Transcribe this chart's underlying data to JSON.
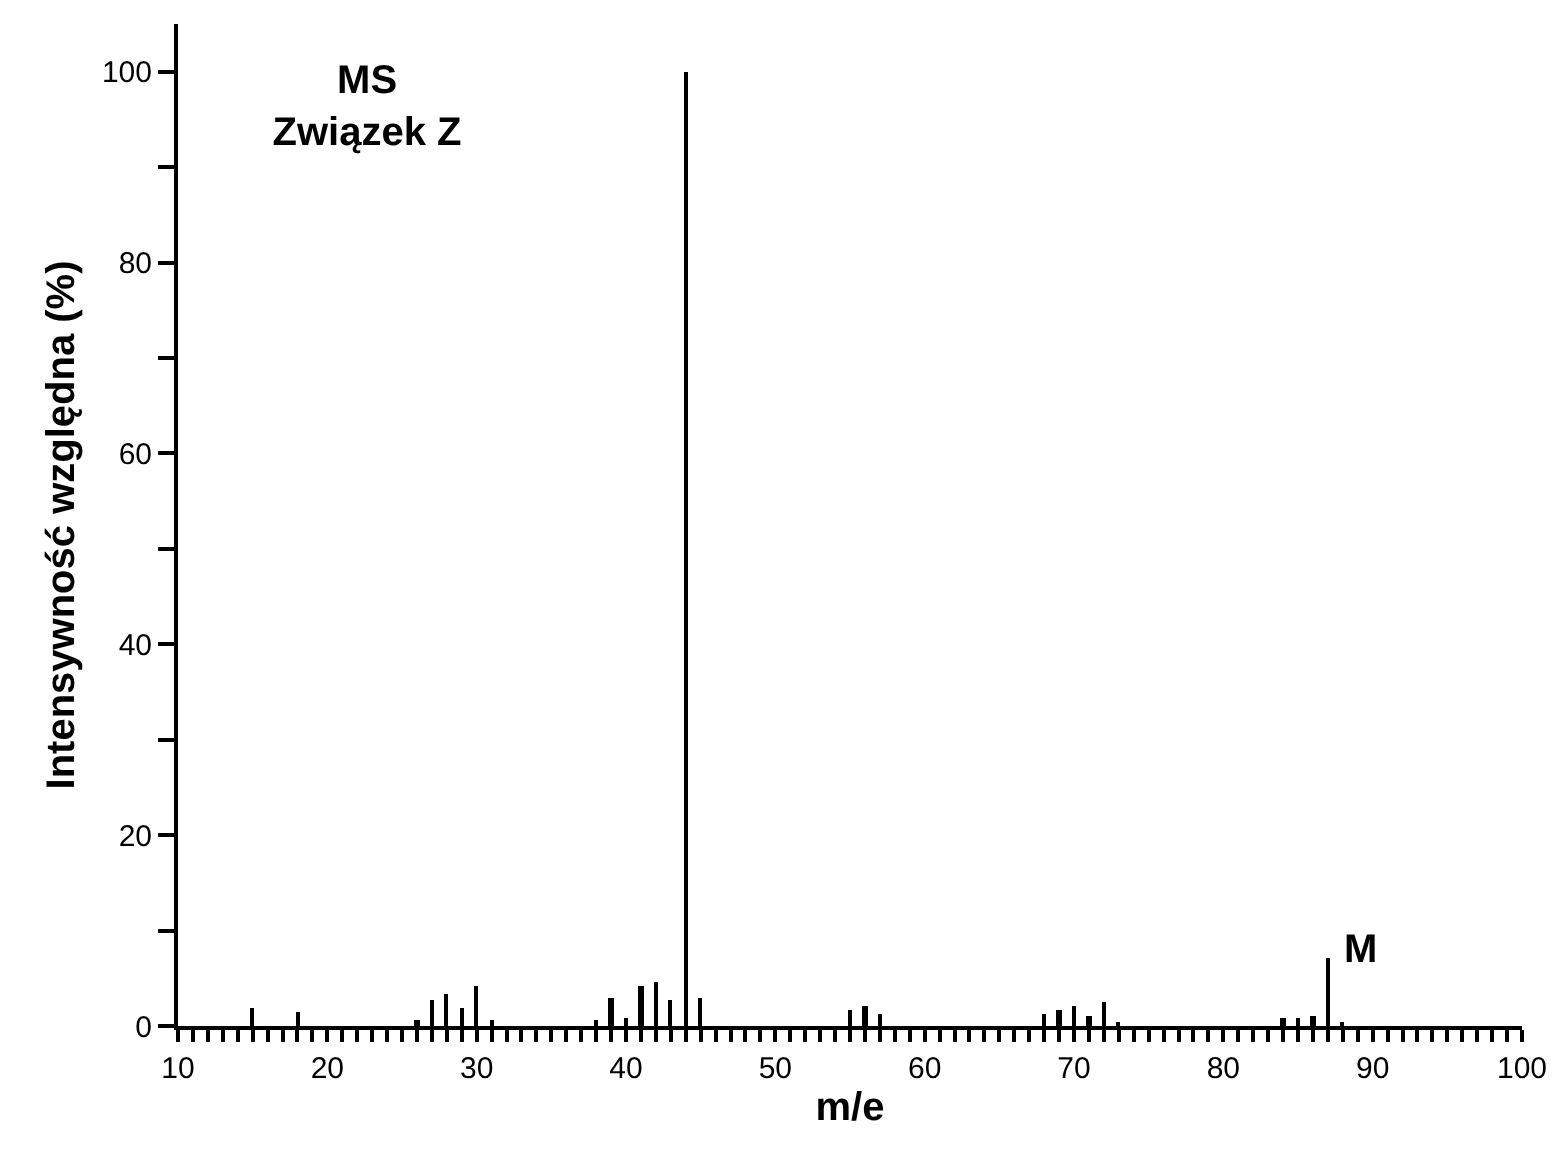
{
  "chart_data": {
    "type": "bar",
    "title": "MS",
    "subtitle": "Związek Z",
    "xlabel": "m/e",
    "ylabel": "Intensywność względna (%)",
    "x": [
      15,
      18,
      26,
      27,
      28,
      29,
      30,
      31,
      38,
      39,
      40,
      41,
      42,
      43,
      44,
      45,
      55,
      56,
      57,
      68,
      69,
      70,
      71,
      72,
      73,
      84,
      85,
      86,
      87,
      88
    ],
    "values": [
      1.9,
      1.5,
      0.6,
      2.7,
      3.3,
      1.9,
      4.1,
      0.6,
      0.6,
      2.9,
      0.8,
      4.2,
      4.6,
      2.7,
      100,
      2.9,
      1.7,
      2,
      1.2,
      1.2,
      1.6,
      2.1,
      1.1,
      2.6,
      0.4,
      0.8,
      0.8,
      1,
      7.2,
      0.5
    ],
    "color": "#000000",
    "xlim": [
      10,
      100
    ],
    "ylim": [
      0,
      105
    ],
    "xticks": [
      10,
      {
        "value": 11,
        "label": null
      },
      {
        "value": 12,
        "label": null
      },
      {
        "value": 13,
        "label": null
      },
      {
        "value": 14,
        "label": null
      },
      {
        "value": 15,
        "label": null
      },
      {
        "value": 16,
        "label": null
      },
      {
        "value": 17,
        "label": null
      },
      {
        "value": 18,
        "label": null
      },
      {
        "value": 19,
        "label": null
      },
      20,
      {
        "value": 21,
        "label": null
      },
      {
        "value": 22,
        "label": null
      },
      {
        "value": 23,
        "label": null
      },
      {
        "value": 24,
        "label": null
      },
      {
        "value": 25,
        "label": null
      },
      {
        "value": 26,
        "label": null
      },
      {
        "value": 27,
        "label": null
      },
      {
        "value": 28,
        "label": null
      },
      {
        "value": 29,
        "label": null
      },
      30,
      {
        "value": 31,
        "label": null
      },
      {
        "value": 32,
        "label": null
      },
      {
        "value": 33,
        "label": null
      },
      {
        "value": 34,
        "label": null
      },
      {
        "value": 35,
        "label": null
      },
      {
        "value": 36,
        "label": null
      },
      {
        "value": 37,
        "label": null
      },
      {
        "value": 38,
        "label": null
      },
      {
        "value": 39,
        "label": null
      },
      40,
      {
        "value": 41,
        "label": null
      },
      {
        "value": 42,
        "label": null
      },
      {
        "value": 43,
        "label": null
      },
      {
        "value": 44,
        "label": null
      },
      {
        "value": 45,
        "label": null
      },
      {
        "value": 46,
        "label": null
      },
      {
        "value": 47,
        "label": null
      },
      {
        "value": 48,
        "label": null
      },
      {
        "value": 49,
        "label": null
      },
      50,
      {
        "value": 51,
        "label": null
      },
      {
        "value": 52,
        "label": null
      },
      {
        "value": 53,
        "label": null
      },
      {
        "value": 54,
        "label": null
      },
      {
        "value": 55,
        "label": null
      },
      {
        "value": 56,
        "label": null
      },
      {
        "value": 57,
        "label": null
      },
      {
        "value": 58,
        "label": null
      },
      {
        "value": 59,
        "label": null
      },
      60,
      {
        "value": 61,
        "label": null
      },
      {
        "value": 62,
        "label": null
      },
      {
        "value": 63,
        "label": null
      },
      {
        "value": 64,
        "label": null
      },
      {
        "value": 65,
        "label": null
      },
      {
        "value": 66,
        "label": null
      },
      {
        "value": 67,
        "label": null
      },
      {
        "value": 68,
        "label": null
      },
      {
        "value": 69,
        "label": null
      },
      70,
      {
        "value": 71,
        "label": null
      },
      {
        "value": 72,
        "label": null
      },
      {
        "value": 73,
        "label": null
      },
      {
        "value": 74,
        "label": null
      },
      {
        "value": 75,
        "label": null
      },
      {
        "value": 76,
        "label": null
      },
      {
        "value": 77,
        "label": null
      },
      {
        "value": 78,
        "label": null
      },
      {
        "value": 79,
        "label": null
      },
      80,
      {
        "value": 81,
        "label": null
      },
      {
        "value": 82,
        "label": null
      },
      {
        "value": 83,
        "label": null
      },
      {
        "value": 84,
        "label": null
      },
      {
        "value": 85,
        "label": null
      },
      {
        "value": 86,
        "label": null
      },
      {
        "value": 87,
        "label": null
      },
      {
        "value": 88,
        "label": null
      },
      {
        "value": 89,
        "label": null
      },
      90,
      {
        "value": 91,
        "label": null
      },
      {
        "value": 92,
        "label": null
      },
      {
        "value": 93,
        "label": null
      },
      {
        "value": 94,
        "label": null
      },
      {
        "value": 95,
        "label": null
      },
      {
        "value": 96,
        "label": null
      },
      {
        "value": 97,
        "label": null
      },
      {
        "value": 98,
        "label": null
      },
      {
        "value": 99,
        "label": null
      },
      100
    ],
    "yticks": [
      0,
      {
        "value": 10,
        "label": null
      },
      20,
      {
        "value": 30,
        "label": null
      },
      40,
      {
        "value": 50,
        "label": null
      },
      60,
      {
        "value": 70,
        "label": null
      },
      80,
      {
        "value": 90,
        "label": null
      },
      100
    ],
    "annotations": [
      {
        "text": "M",
        "x": 87,
        "y": 7.2
      }
    ],
    "grid": false,
    "legend": false
  }
}
